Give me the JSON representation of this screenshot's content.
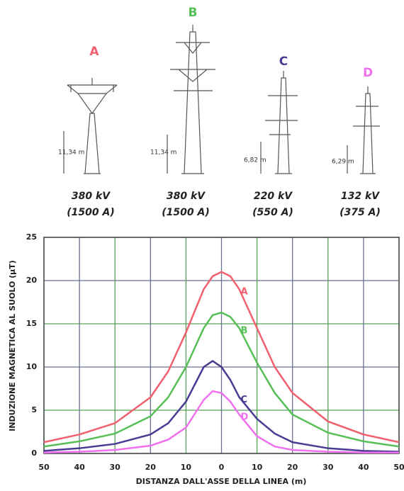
{
  "towers": [
    {
      "letter": "A",
      "height": "11,34 m",
      "voltage": "380 kV",
      "current": "(1500 A)"
    },
    {
      "letter": "B",
      "height": "11,34 m",
      "voltage": "380 kV",
      "current": "(1500 A)"
    },
    {
      "letter": "C",
      "height": "6,82 m",
      "voltage": "220 kV",
      "current": "(550 A)"
    },
    {
      "letter": "D",
      "height": "6,29 m",
      "voltage": "132 kV",
      "current": "(375 A)"
    }
  ],
  "chart_data": {
    "type": "line",
    "y_label": "INDUZIONE MAGNETICA AL SUOLO (µT)",
    "x_label": "DISTANZA DALL'ASSE DELLA LINEA (m)",
    "x": [
      -50,
      -40,
      -30,
      -20,
      -15,
      -10,
      -5,
      -2.5,
      0,
      2.5,
      5,
      10,
      15,
      20,
      30,
      40,
      50
    ],
    "series": [
      {
        "name": "A",
        "color": "#f0606e",
        "values": [
          1.3,
          2.2,
          3.5,
          6.5,
          9.5,
          14,
          19,
          20.5,
          21,
          20.5,
          19,
          14.5,
          10,
          7,
          3.7,
          2.2,
          1.3
        ]
      },
      {
        "name": "B",
        "color": "#56c056",
        "values": [
          0.8,
          1.4,
          2.3,
          4.3,
          6.5,
          10,
          14.5,
          16,
          16.3,
          15.8,
          14.5,
          10.5,
          7,
          4.5,
          2.4,
          1.4,
          0.8
        ]
      },
      {
        "name": "C",
        "color": "#4a3c92",
        "values": [
          0.3,
          0.6,
          1.1,
          2.2,
          3.5,
          6,
          10,
          10.7,
          10,
          8.5,
          6.5,
          4,
          2.3,
          1.3,
          0.6,
          0.3,
          0.2
        ]
      },
      {
        "name": "D",
        "color": "#f070f0",
        "values": [
          0.1,
          0.2,
          0.4,
          0.9,
          1.6,
          3,
          6.2,
          7.2,
          7,
          6,
          4.5,
          2,
          0.8,
          0.4,
          0.2,
          0.1,
          0.1
        ]
      }
    ],
    "xlim": [
      -50,
      50
    ],
    "xticks": [
      {
        "value": -50,
        "label": "50"
      },
      {
        "value": -40,
        "label": "40"
      },
      {
        "value": -30,
        "label": "30"
      },
      {
        "value": -20,
        "label": "20"
      },
      {
        "value": -10,
        "label": "10"
      },
      0,
      10,
      20,
      30,
      40,
      50
    ],
    "ylim": [
      0,
      25
    ],
    "yticks": [
      0,
      5,
      10,
      15,
      20,
      25
    ],
    "grid": true
  }
}
